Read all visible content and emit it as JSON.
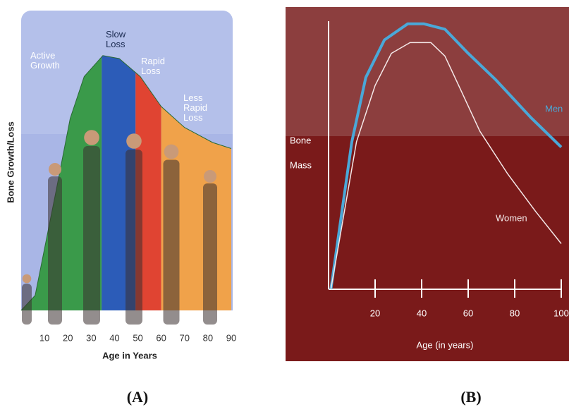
{
  "chart_data": [
    {
      "type": "area",
      "caption": "(A)",
      "ylabel": "Bone Growth/Loss",
      "xlabel": "Age in Years",
      "x": [
        0,
        6,
        15,
        21,
        27,
        35,
        42,
        51,
        60,
        70,
        82,
        90
      ],
      "values": [
        0,
        5,
        40,
        64,
        78,
        85,
        84,
        78,
        68,
        61,
        56,
        54
      ],
      "xlim": [
        0,
        90
      ],
      "ylim": [
        0,
        100
      ],
      "xticks": [
        10,
        20,
        30,
        40,
        50,
        60,
        70,
        80,
        90
      ],
      "background": "#b4c0ea",
      "phases": [
        {
          "labels": [
            "Active",
            "Growth"
          ],
          "color": "#3a9a4a",
          "range": [
            0,
            34.5
          ]
        },
        {
          "labels": [
            "Slow",
            "Loss"
          ],
          "color": "#2c5cb8",
          "range": [
            34.5,
            49
          ]
        },
        {
          "labels": [
            "Rapid",
            "Loss"
          ],
          "color": "#e04432",
          "range": [
            49,
            60
          ]
        },
        {
          "labels": [
            "Less",
            "Rapid",
            "Loss"
          ],
          "color": "#f0a24a",
          "range": [
            60,
            90
          ]
        }
      ]
    },
    {
      "type": "line",
      "caption": "(B)",
      "ylabel_lines": [
        "Bone",
        "Mass"
      ],
      "xlabel": "Age (in years)",
      "xlim": [
        0,
        100
      ],
      "ylim": [
        0,
        100
      ],
      "xticks": [
        20,
        40,
        60,
        80,
        100
      ],
      "background": "#7a1a1a",
      "series": [
        {
          "name": "Men",
          "color": "#4aa8d8",
          "x": [
            1,
            10,
            16,
            24,
            34,
            41,
            50,
            60,
            72,
            87,
            100
          ],
          "values": [
            0,
            55,
            79,
            93,
            99,
            99,
            97,
            88,
            78,
            64,
            53
          ]
        },
        {
          "name": "Women",
          "color": "#f4e8e8",
          "x": [
            1,
            12,
            20,
            27,
            35,
            44,
            50,
            57,
            65,
            77,
            89,
            100
          ],
          "values": [
            0,
            55,
            76,
            88,
            92,
            92,
            87,
            74,
            59,
            43,
            29,
            17
          ]
        }
      ]
    }
  ]
}
